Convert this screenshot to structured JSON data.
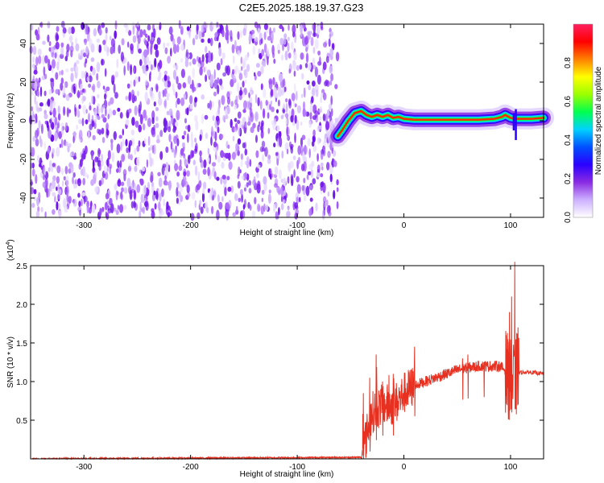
{
  "title": "C2E5.2025.188.19.37.G23",
  "chart_data": [
    {
      "type": "heatmap",
      "name": "spectrogram",
      "xlabel": "Height of straight line (km)",
      "ylabel": "Frequency (Hz)",
      "xlim": [
        -350,
        131
      ],
      "ylim": [
        -50,
        50
      ],
      "xticks": [
        -300,
        -200,
        -100,
        0,
        100
      ],
      "yticks": [
        -40,
        -20,
        0,
        20,
        40
      ],
      "noise_region_x": [
        -350,
        -62
      ],
      "tone_track": {
        "x": [
          -62,
          -58,
          -52,
          -46,
          -40,
          -35,
          -30,
          -25,
          -20,
          -15,
          -10,
          -5,
          0,
          10,
          30,
          50,
          70,
          85,
          92,
          95,
          100,
          105,
          110,
          120,
          131
        ],
        "y": [
          -8,
          -5,
          0,
          4,
          5,
          3,
          2,
          3,
          2,
          3,
          1.5,
          2,
          1,
          0.5,
          0.5,
          0.5,
          0.5,
          1,
          2,
          3,
          1.5,
          1,
          1,
          1,
          1.5
        ]
      },
      "colorbar": {
        "label": "Normalized spectral amplitude",
        "range": [
          0,
          1
        ],
        "ticks": [
          "0.0",
          "0.2",
          "0.4",
          "0.6",
          "0.8"
        ],
        "ticks_values": [
          0.0,
          0.2,
          0.4,
          0.6,
          0.8
        ],
        "colors": [
          "#ffffff",
          "#ccb0ff",
          "#8a2be2",
          "#2a00ff",
          "#0050ff",
          "#00d2ff",
          "#00ff50",
          "#9bff00",
          "#ffff00",
          "#ff8000",
          "#ff0000",
          "#ff2060"
        ]
      }
    },
    {
      "type": "line",
      "name": "snr",
      "xlabel": "Height of straight line (km)",
      "ylabel": "SNR (10 * v/v)",
      "scale_label": "(x10",
      "scale_exp": "4",
      "scale_close": ")",
      "xlim": [
        -350,
        131
      ],
      "ylim": [
        0,
        2.5
      ],
      "xticks": [
        -300,
        -200,
        -100,
        0,
        100
      ],
      "yticks": [
        "0.5",
        "1.0",
        "1.5",
        "2.0",
        "2.5"
      ],
      "yticks_values": [
        0.5,
        1.0,
        1.5,
        2.0,
        2.5
      ],
      "color": "#e83020",
      "envelope": {
        "x": [
          -350,
          -40,
          -35,
          -30,
          -20,
          -10,
          -5,
          0,
          10,
          20,
          30,
          40,
          50,
          60,
          70,
          80,
          90,
          95,
          100,
          103,
          106,
          110,
          120,
          131
        ],
        "y": [
          0.0,
          0.02,
          0.3,
          0.6,
          0.7,
          0.7,
          0.75,
          0.85,
          0.95,
          1.0,
          1.05,
          1.1,
          1.15,
          1.18,
          1.2,
          1.2,
          1.2,
          1.15,
          1.0,
          1.0,
          1.1,
          1.12,
          1.12,
          1.1
        ]
      },
      "spikes": [
        {
          "x": -38,
          "y": 0.85
        },
        {
          "x": -32,
          "y": 1.05
        },
        {
          "x": -26,
          "y": 1.35
        },
        {
          "x": -20,
          "y": 1.0
        },
        {
          "x": -10,
          "y": 1.1
        },
        {
          "x": 10,
          "y": 1.45
        },
        {
          "x": 55,
          "y": 1.3
        },
        {
          "x": 60,
          "y": 1.35
        },
        {
          "x": 75,
          "y": 1.25
        },
        {
          "x": 96,
          "y": 1.6
        },
        {
          "x": 99,
          "y": 1.9
        },
        {
          "x": 101,
          "y": 2.1
        },
        {
          "x": 104,
          "y": 2.55
        },
        {
          "x": 107,
          "y": 1.7
        }
      ]
    }
  ]
}
